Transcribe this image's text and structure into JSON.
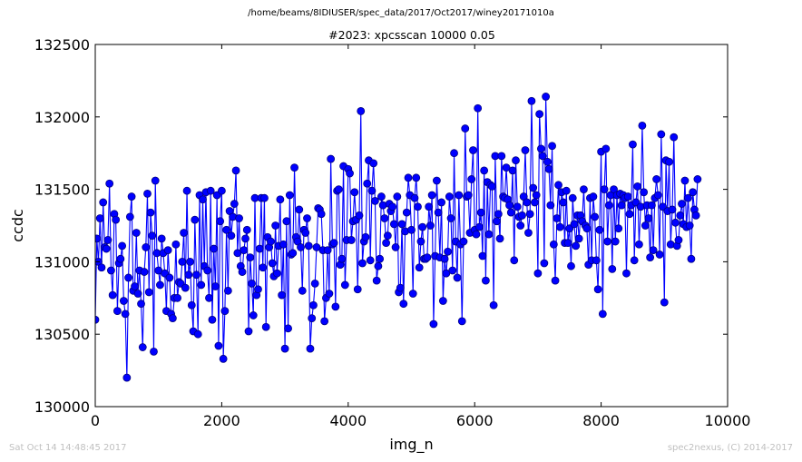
{
  "suptitle": "/home/beams/8IDIUSER/spec_data/2017/Oct2017/winey20171010a",
  "footer": {
    "left": "Sat Oct 14 14:48:45 2017",
    "right": "spec2nexus, (C) 2014-2017"
  },
  "colors": {
    "series": "#0000ff",
    "marker_edge": "#000080"
  },
  "chart_data": {
    "type": "line",
    "title": "#2023: xpcsscan 10000 0.05",
    "xlabel": "img_n",
    "ylabel": "ccdc",
    "xlim": [
      0,
      10000
    ],
    "ylim": [
      130000,
      132500
    ],
    "xticks": [
      0,
      2000,
      4000,
      6000,
      8000,
      10000
    ],
    "yticks": [
      130000,
      130500,
      131000,
      131500,
      132000,
      132500
    ],
    "xtick_labels": [
      "0",
      "2000",
      "4000",
      "6000",
      "8000",
      "10000"
    ],
    "ytick_labels": [
      "130000",
      "130500",
      "131000",
      "131500",
      "132000",
      "132500"
    ],
    "marker": "circle",
    "grid": false,
    "series": [
      {
        "x_start": 0,
        "x_step": 25,
        "values": [
          130600,
          131160,
          131000,
          131300,
          130960,
          131410,
          131100,
          131090,
          131150,
          131540,
          130940,
          130770,
          131330,
          131290,
          130660,
          130990,
          131020,
          131110,
          130730,
          130640,
          130200,
          130890,
          131310,
          131450,
          130800,
          130830,
          131200,
          130780,
          130940,
          130710,
          130410,
          130930,
          131100,
          131470,
          130790,
          131340,
          131180,
          130380,
          131560,
          131060,
          130940,
          130840,
          131160,
          131060,
          130920,
          130660,
          131080,
          130890,
          130640,
          130610,
          130750,
          131120,
          130750,
          130860,
          130850,
          131000,
          131200,
          130820,
          131490,
          130910,
          131000,
          130700,
          130520,
          131290,
          130910,
          130500,
          131460,
          130840,
          131430,
          130970,
          131480,
          130940,
          130750,
          131490,
          130600,
          131090,
          130830,
          131460,
          130420,
          131280,
          131490,
          130330,
          130660,
          131220,
          130800,
          131350,
          131180,
          131310,
          131400,
          131630,
          131060,
          131300,
          130970,
          130930,
          131080,
          131160,
          131220,
          130520,
          131030,
          130850,
          130630,
          131440,
          130770,
          130810,
          131090,
          131440,
          130960,
          131440,
          130550,
          131170,
          131100,
          131140,
          130990,
          130900,
          131250,
          130920,
          131110,
          131430,
          130770,
          131120,
          130400,
          131280,
          130540,
          131460,
          131050,
          131060,
          131650,
          131170,
          131140,
          131360,
          131100,
          130800,
          131220,
          131200,
          131300,
          131110,
          130400,
          130610,
          130700,
          130850,
          131100,
          131370,
          131360,
          131330,
          131080,
          130590,
          130750,
          131080,
          130780,
          131710,
          131120,
          131130,
          130690,
          131490,
          131500,
          130980,
          131020,
          131660,
          130840,
          131150,
          131640,
          131610,
          131150,
          131280,
          131480,
          131290,
          130810,
          131320,
          132040,
          130990,
          131140,
          131170,
          131540,
          131700,
          131010,
          131490,
          131680,
          131420,
          130870,
          130970,
          131020,
          131450,
          131390,
          131300,
          131130,
          131180,
          131400,
          131350,
          131380,
          131260,
          131100,
          131450,
          130790,
          130820,
          131260,
          130710,
          131210,
          131340,
          131580,
          131460,
          131220,
          130780,
          131440,
          131580,
          131380,
          130960,
          131140,
          131240,
          131020,
          131020,
          131030,
          131380,
          131250,
          131460,
          130570,
          131040,
          131560,
          131340,
          131030,
          131410,
          130730,
          131020,
          130920,
          131070,
          131450,
          131300,
          130940,
          131750,
          131140,
          130890,
          131460,
          131120,
          130590,
          131140,
          131920,
          131450,
          131460,
          131200,
          131570,
          131770,
          131220,
          131190,
          132060,
          131240,
          131340,
          131040,
          131630,
          130870,
          131550,
          131190,
          131530,
          131520,
          130700,
          131730,
          131280,
          131330,
          131160,
          131730,
          131450,
          131440,
          131650,
          131430,
          131390,
          131340,
          131630,
          131010,
          131700,
          131380,
          131310,
          131250,
          131320,
          131450,
          131770,
          131410,
          131200,
          131330,
          132110,
          131510,
          131410,
          131460,
          130920,
          132020,
          131780,
          131730,
          130990,
          132140,
          131690,
          131640,
          131390,
          131800,
          131120,
          130870,
          131300,
          131530,
          131240,
          131480,
          131410,
          131130,
          131490,
          131130,
          131230,
          130970,
          131440,
          131260,
          131110,
          131320,
          131160,
          131320,
          131280,
          131500,
          131250,
          131230,
          130980,
          131440,
          131010,
          131450,
          131310,
          131010,
          130810,
          131220,
          131760,
          130640,
          131500,
          131780,
          131140,
          131390,
          131460,
          130950,
          131500,
          131140,
          131460,
          131230,
          131470,
          131390,
          131460,
          131440,
          130920,
          131450,
          131330,
          131390,
          131810,
          131010,
          131410,
          131520,
          131120,
          131380,
          131940,
          131480,
          131250,
          131390,
          131300,
          131030,
          131390,
          131080,
          131440,
          131570,
          131460,
          131050,
          131880,
          131380,
          130720,
          131700,
          131350,
          131690,
          131120,
          131360,
          131860,
          131270,
          131110,
          131150,
          131320,
          131400,
          131260,
          131560,
          131240,
          131440,
          131250,
          131020,
          131480,
          131360,
          131320,
          131570
        ]
      }
    ]
  }
}
